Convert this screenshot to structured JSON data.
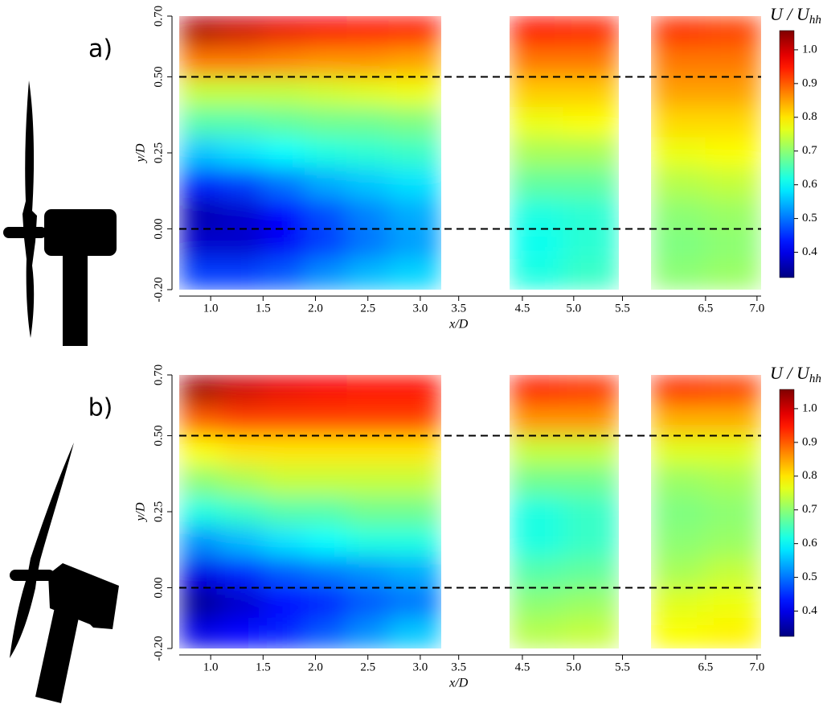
{
  "chart_data": [
    {
      "type": "heatmap",
      "panel_label": "a)",
      "xlabel": "x/D",
      "ylabel": "y/D",
      "colorbar_title": "U / U",
      "colorbar_title_sub": "hh",
      "ylim": [
        -0.2,
        0.7
      ],
      "yticks": [
        {
          "value": -0.2,
          "label": "-0.20"
        },
        {
          "value": 0,
          "label": "0.00"
        },
        {
          "value": 0.25,
          "label": "0.25"
        },
        {
          "value": 0.5,
          "label": "0.50"
        },
        {
          "value": 0.7,
          "label": "0.70"
        }
      ],
      "xticks": [
        {
          "value": 1,
          "label": "1.0"
        },
        1.5,
        {
          "value": 2,
          "label": "2.0"
        },
        2.5,
        {
          "value": 3,
          "label": "3.0"
        },
        3.5,
        4.5,
        {
          "value": 5,
          "label": "5.0"
        },
        5.5,
        6.5,
        {
          "value": 7,
          "label": "7.0"
        }
      ],
      "hlines": [
        0.5,
        0
      ],
      "clim": [
        0.325,
        1.057
      ],
      "cticks": [
        0.4,
        0.5,
        0.6,
        0.7,
        0.8,
        0.9,
        {
          "value": 1,
          "label": "1.0"
        }
      ],
      "y": [
        0.65,
        0.55,
        0.45,
        0.35,
        0.25,
        0.15,
        0.05,
        -0.05,
        -0.15
      ],
      "windows": [
        {
          "xlim": [
            0.7,
            3.2
          ],
          "x": [
            0.9,
            1.3,
            1.7,
            2.1,
            2.5,
            2.9
          ],
          "z": [
            [
              1.02,
              1.0,
              0.98,
              0.97,
              0.96,
              0.95
            ],
            [
              0.88,
              0.88,
              0.87,
              0.86,
              0.86,
              0.85
            ],
            [
              0.74,
              0.74,
              0.74,
              0.75,
              0.76,
              0.77
            ],
            [
              0.66,
              0.66,
              0.67,
              0.68,
              0.68,
              0.69
            ],
            [
              0.56,
              0.58,
              0.6,
              0.62,
              0.63,
              0.64
            ],
            [
              0.44,
              0.46,
              0.5,
              0.54,
              0.56,
              0.58
            ],
            [
              0.36,
              0.38,
              0.42,
              0.47,
              0.51,
              0.54
            ],
            [
              0.38,
              0.38,
              0.41,
              0.46,
              0.5,
              0.53
            ],
            [
              0.46,
              0.46,
              0.48,
              0.52,
              0.55,
              0.57
            ]
          ]
        },
        {
          "xlim": [
            4.375,
            5.44
          ],
          "x": [
            4.6,
            5.2
          ],
          "z": [
            [
              0.95,
              0.94
            ],
            [
              0.88,
              0.88
            ],
            [
              0.82,
              0.82
            ],
            [
              0.77,
              0.78
            ],
            [
              0.72,
              0.72
            ],
            [
              0.67,
              0.67
            ],
            [
              0.62,
              0.63
            ],
            [
              0.61,
              0.63
            ],
            [
              0.62,
              0.64
            ]
          ]
        },
        {
          "xlim": [
            5.97,
            7.04
          ],
          "x": [
            6.25,
            6.75
          ],
          "z": [
            [
              0.93,
              0.92
            ],
            [
              0.88,
              0.88
            ],
            [
              0.85,
              0.85
            ],
            [
              0.81,
              0.81
            ],
            [
              0.77,
              0.78
            ],
            [
              0.73,
              0.74
            ],
            [
              0.7,
              0.71
            ],
            [
              0.69,
              0.7
            ],
            [
              0.7,
              0.71
            ]
          ]
        }
      ]
    },
    {
      "type": "heatmap",
      "panel_label": "b)",
      "xlabel": "x/D",
      "ylabel": "y/D",
      "colorbar_title": "U / U",
      "colorbar_title_sub": "hh",
      "ylim": [
        -0.2,
        0.7
      ],
      "yticks": [
        {
          "value": -0.2,
          "label": "-0.20"
        },
        {
          "value": 0,
          "label": "0.00"
        },
        {
          "value": 0.25,
          "label": "0.25"
        },
        {
          "value": 0.5,
          "label": "0.50"
        },
        {
          "value": 0.7,
          "label": "0.70"
        }
      ],
      "xticks": [
        {
          "value": 1,
          "label": "1.0"
        },
        1.5,
        {
          "value": 2,
          "label": "2.0"
        },
        2.5,
        {
          "value": 3,
          "label": "3.0"
        },
        3.5,
        4.5,
        {
          "value": 5,
          "label": "5.0"
        },
        5.5,
        6.5,
        {
          "value": 7,
          "label": "7.0"
        }
      ],
      "hlines": [
        0.5,
        0
      ],
      "clim": [
        0.325,
        1.057
      ],
      "cticks": [
        0.4,
        0.5,
        0.6,
        0.7,
        0.8,
        0.9,
        {
          "value": 1,
          "label": "1.0"
        }
      ],
      "y": [
        0.65,
        0.55,
        0.45,
        0.35,
        0.25,
        0.15,
        0.05,
        -0.05,
        -0.15
      ],
      "windows": [
        {
          "xlim": [
            0.7,
            3.2
          ],
          "x": [
            0.9,
            1.3,
            1.7,
            2.1,
            2.5,
            2.9
          ],
          "z": [
            [
              1.03,
              1.0,
              0.98,
              0.97,
              0.96,
              0.96
            ],
            [
              0.9,
              0.92,
              0.92,
              0.92,
              0.92,
              0.92
            ],
            [
              0.78,
              0.8,
              0.8,
              0.8,
              0.8,
              0.8
            ],
            [
              0.7,
              0.72,
              0.74,
              0.74,
              0.74,
              0.74
            ],
            [
              0.62,
              0.64,
              0.66,
              0.66,
              0.68,
              0.68
            ],
            [
              0.52,
              0.55,
              0.58,
              0.6,
              0.62,
              0.62
            ],
            [
              0.4,
              0.44,
              0.48,
              0.5,
              0.52,
              0.54
            ],
            [
              0.34,
              0.38,
              0.42,
              0.44,
              0.48,
              0.5
            ],
            [
              0.4,
              0.42,
              0.44,
              0.48,
              0.52,
              0.56
            ]
          ]
        },
        {
          "xlim": [
            4.375,
            5.44
          ],
          "x": [
            4.6,
            5.2
          ],
          "z": [
            [
              0.94,
              0.93
            ],
            [
              0.86,
              0.86
            ],
            [
              0.74,
              0.74
            ],
            [
              0.68,
              0.68
            ],
            [
              0.62,
              0.64
            ],
            [
              0.62,
              0.64
            ],
            [
              0.66,
              0.67
            ],
            [
              0.7,
              0.71
            ],
            [
              0.73,
              0.74
            ]
          ]
        },
        {
          "xlim": [
            5.97,
            7.04
          ],
          "x": [
            6.25,
            6.75
          ],
          "z": [
            [
              0.93,
              0.92
            ],
            [
              0.84,
              0.84
            ],
            [
              0.76,
              0.76
            ],
            [
              0.71,
              0.72
            ],
            [
              0.69,
              0.7
            ],
            [
              0.7,
              0.71
            ],
            [
              0.72,
              0.74
            ],
            [
              0.76,
              0.77
            ],
            [
              0.78,
              0.79
            ]
          ]
        }
      ]
    }
  ]
}
